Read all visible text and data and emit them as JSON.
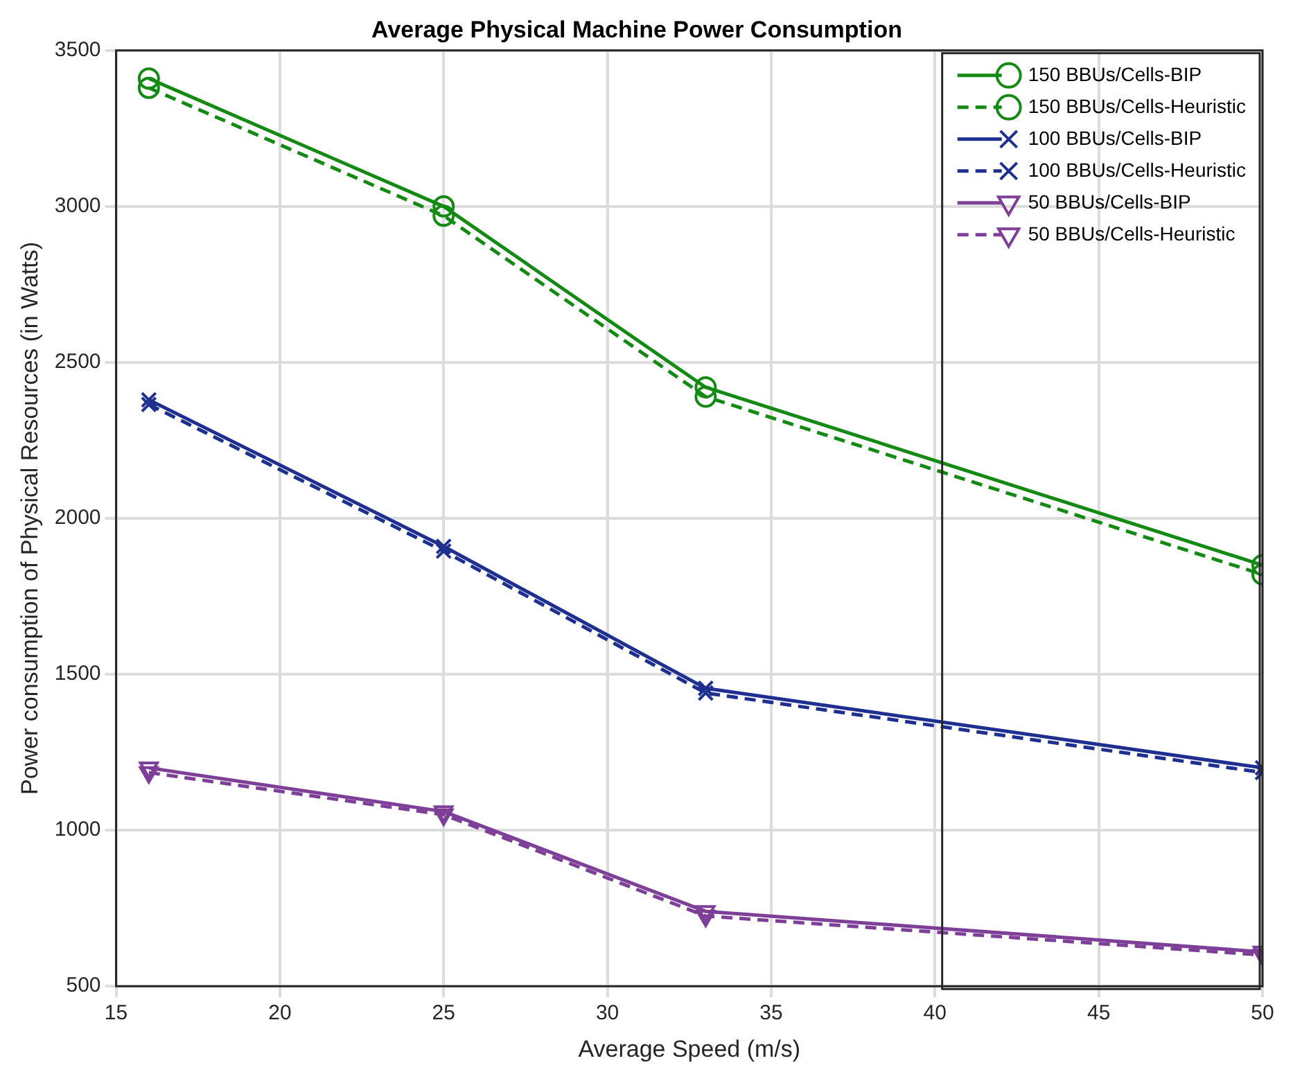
{
  "chart_data": {
    "type": "line",
    "title": "Average Physical Machine Power Consumption",
    "xlabel": "Average Speed (m/s)",
    "ylabel": "Power consumption of Physical Resources (in Watts)",
    "x": [
      16,
      25,
      33,
      50
    ],
    "xlim": [
      15,
      50
    ],
    "xticks": [
      15,
      20,
      25,
      30,
      35,
      40,
      45,
      50
    ],
    "ylim": [
      500,
      3500
    ],
    "yticks": [
      500,
      1000,
      1500,
      2000,
      2500,
      3000,
      3500
    ],
    "grid": true,
    "legend": "top right",
    "series": [
      {
        "name": "150 BBUs/Cells-BIP",
        "color": "#148a14",
        "marker": "circle",
        "line_style": "solid",
        "values": [
          3410,
          3000,
          2420,
          1850
        ]
      },
      {
        "name": "150 BBUs/Cells-Heuristic",
        "color": "#148a14",
        "marker": "circle",
        "line_style": "dashed",
        "values": [
          3380,
          2970,
          2390,
          1820
        ]
      },
      {
        "name": "100 BBUs/Cells-BIP",
        "color": "#1f2f8f",
        "marker": "cross",
        "line_style": "solid",
        "values": [
          2380,
          1910,
          1455,
          1200
        ]
      },
      {
        "name": "100 BBUs/Cells-Heuristic",
        "color": "#1f2f8f",
        "marker": "cross",
        "line_style": "dashed",
        "values": [
          2365,
          1895,
          1440,
          1185
        ]
      },
      {
        "name": "50 BBUs/Cells-BIP",
        "color": "#7e3f98",
        "marker": "triangle",
        "line_style": "solid",
        "values": [
          1200,
          1060,
          740,
          610
        ]
      },
      {
        "name": "50 BBUs/Cells-Heuristic",
        "color": "#7e3f98",
        "marker": "triangle",
        "line_style": "dashed",
        "values": [
          1185,
          1050,
          725,
          600
        ]
      }
    ]
  }
}
